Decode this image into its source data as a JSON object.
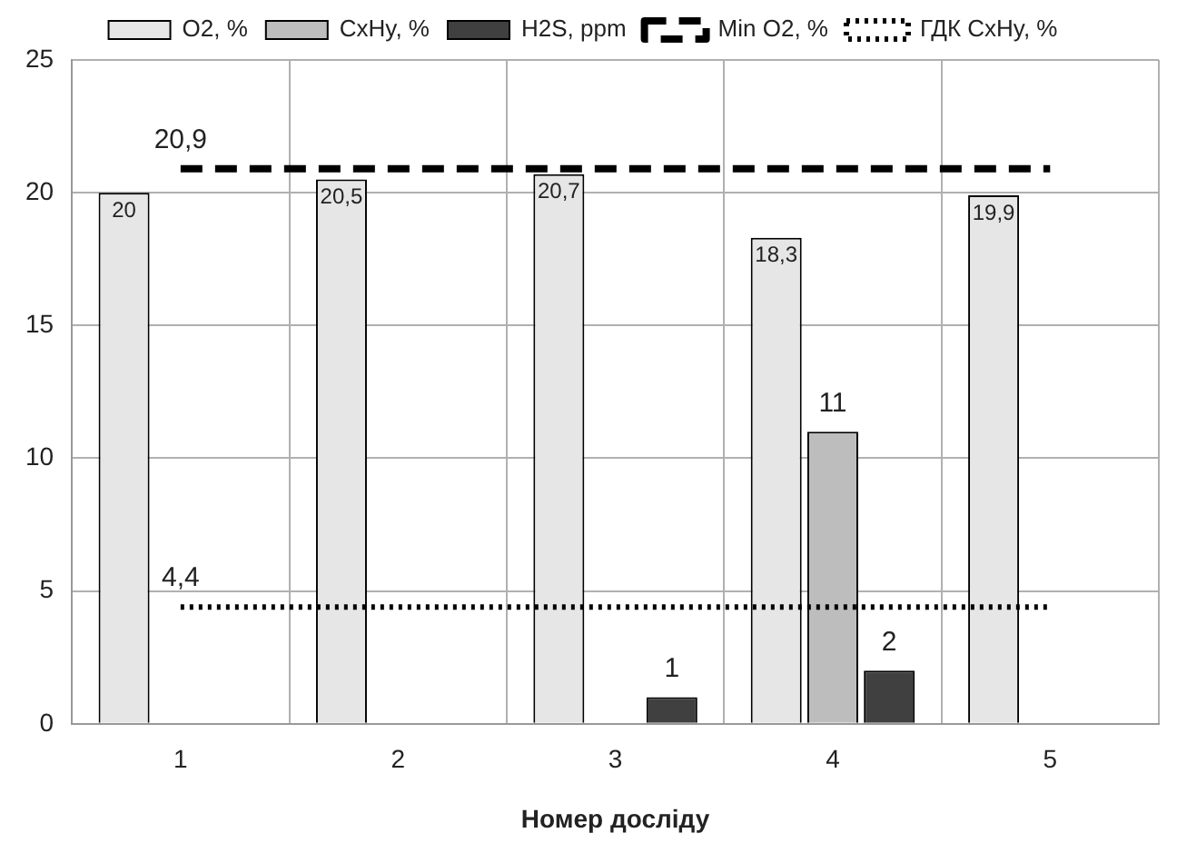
{
  "chart_data": {
    "type": "bar",
    "xlabel": "Номер досліду",
    "categories": [
      "1",
      "2",
      "3",
      "4",
      "5"
    ],
    "ylim": [
      0,
      25
    ],
    "yticks": [
      0,
      5,
      10,
      15,
      20,
      25
    ],
    "grid": true,
    "legend": "top",
    "marker": "none",
    "series": [
      {
        "name": "O2, %",
        "color": "#e6e6e6",
        "values": [
          20,
          20.5,
          20.7,
          18.3,
          19.9
        ],
        "value_labels": [
          "20",
          "20,5",
          "20,7",
          "18,3",
          "19,9"
        ]
      },
      {
        "name": "CxHy, %",
        "color": "#bdbdbd",
        "values": [
          null,
          null,
          null,
          11,
          null
        ],
        "value_labels": [
          null,
          null,
          null,
          "11",
          null
        ]
      },
      {
        "name": "H2S, ppm",
        "color": "#404040",
        "values": [
          null,
          null,
          1,
          2,
          null
        ],
        "value_labels": [
          null,
          null,
          "1",
          "2",
          null
        ]
      },
      {
        "name": "Min O2, %",
        "type": "line",
        "line_style": "dashed",
        "color": "#000000",
        "values": [
          20.9,
          20.9,
          20.9,
          20.9,
          20.9
        ],
        "value_labels": [
          "20,9",
          null,
          null,
          null,
          null
        ]
      },
      {
        "name": "ГДК CxHy, %",
        "type": "line",
        "line_style": "dotted",
        "color": "#000000",
        "values": [
          4.4,
          4.4,
          4.4,
          4.4,
          4.4
        ],
        "value_labels": [
          "4,4",
          null,
          null,
          null,
          null
        ]
      }
    ]
  }
}
